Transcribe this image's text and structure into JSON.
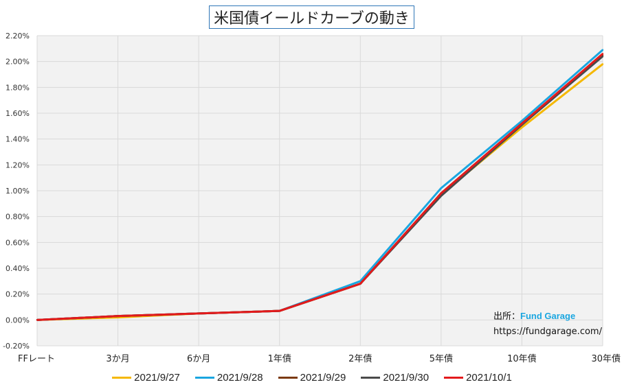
{
  "chart_data": {
    "type": "line",
    "title": "米国債イールドカーブの動き",
    "categories": [
      "FFレート",
      "3か月",
      "6か月",
      "1年債",
      "2年債",
      "5年債",
      "10年債",
      "30年債"
    ],
    "y_ticks": [
      "-0.20%",
      "0.00%",
      "0.20%",
      "0.40%",
      "0.60%",
      "0.80%",
      "1.00%",
      "1.20%",
      "1.40%",
      "1.60%",
      "1.80%",
      "2.00%",
      "2.20%"
    ],
    "ylim": [
      -0.2,
      2.2
    ],
    "grid": true,
    "legend_position": "bottom",
    "series": [
      {
        "name": "2021/9/27",
        "color": "#f5b800",
        "values": [
          0.0,
          0.02,
          0.05,
          0.07,
          0.28,
          0.97,
          1.49,
          1.98
        ]
      },
      {
        "name": "2021/9/28",
        "color": "#1aa6e0",
        "values": [
          0.0,
          0.03,
          0.05,
          0.07,
          0.3,
          1.02,
          1.54,
          2.09
        ]
      },
      {
        "name": "2021/9/29",
        "color": "#7b3a10",
        "values": [
          0.0,
          0.03,
          0.05,
          0.07,
          0.28,
          0.98,
          1.52,
          2.05
        ]
      },
      {
        "name": "2021/9/30",
        "color": "#4a4a4a",
        "values": [
          0.0,
          0.03,
          0.05,
          0.07,
          0.28,
          0.96,
          1.51,
          2.04
        ]
      },
      {
        "name": "2021/10/1",
        "color": "#e31a1c",
        "values": [
          0.0,
          0.03,
          0.05,
          0.07,
          0.28,
          0.98,
          1.52,
          2.06
        ]
      }
    ]
  },
  "source": {
    "label": "出所：",
    "brand": "Fund Garage",
    "url": "https://fundgarage.com/"
  }
}
